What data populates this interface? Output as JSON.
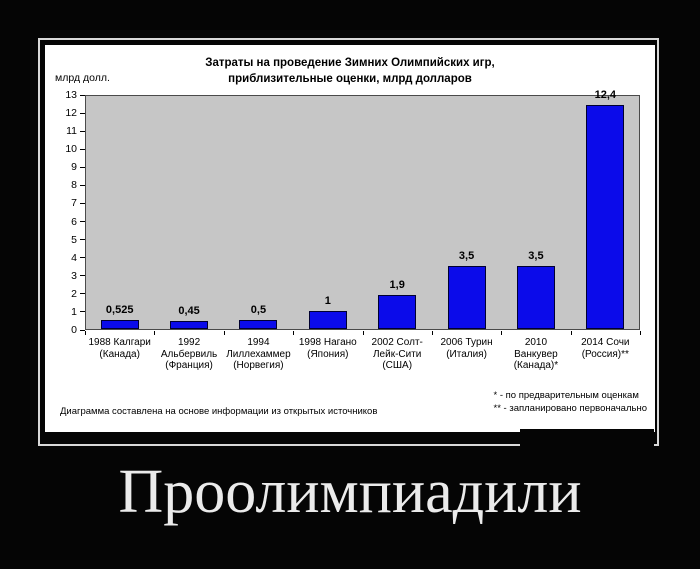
{
  "caption": "Проолимпиадили",
  "chart": {
    "unit_label": "млрд долл.",
    "footnotes": [
      "* - по предварительным оценкам",
      "** - запланировано первоначально"
    ],
    "source_note": "Диаграмма составлена на основе информации из открытых источников"
  },
  "chart_data": {
    "type": "bar",
    "title": "Затраты на проведение Зимних Олимпийских игр,\nприблизительные оценки, млрд долларов",
    "categories": [
      "1988 Калгари\n(Канада)",
      "1992\nАльбервиль\n(Франция)",
      "1994\nЛиллехаммер\n(Норвегия)",
      "1998 Нагано\n(Япония)",
      "2002 Солт-\nЛейк-Сити\n(США)",
      "2006 Турин\n(Италия)",
      "2010\nВанкувер\n(Канада)*",
      "2014 Сочи\n(Россия)**"
    ],
    "values": [
      0.525,
      0.45,
      0.5,
      1,
      1.9,
      3.5,
      3.5,
      12.4
    ],
    "value_labels": [
      "0,525",
      "0,45",
      "0,5",
      "1",
      "1,9",
      "3,5",
      "3,5",
      "12,4"
    ],
    "ylabel": "млрд долл.",
    "ylim": [
      0,
      13
    ],
    "ytick_step": 1,
    "grid": false,
    "legend": "none",
    "bar_color": "#0b0bea",
    "plot_bg": "#c6c6c6"
  }
}
